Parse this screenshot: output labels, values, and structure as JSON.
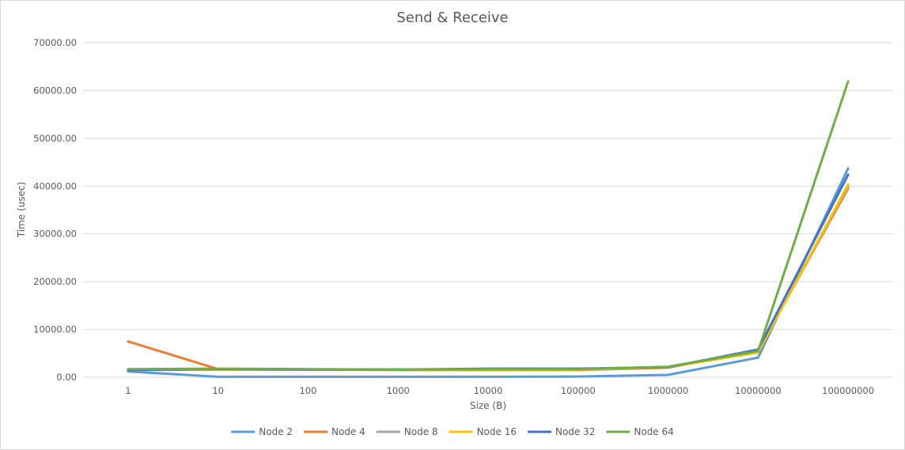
{
  "chart_data": {
    "type": "line",
    "title": "Send & Receive",
    "xlabel": "Size (B)",
    "ylabel": "Time (usec)",
    "ylim": [
      0,
      70000
    ],
    "yticks": [
      "0.00",
      "10000.00",
      "20000.00",
      "30000.00",
      "40000.00",
      "50000.00",
      "60000.00",
      "70000.00"
    ],
    "categories": [
      "1",
      "10",
      "100",
      "1000",
      "10000",
      "100000",
      "1000000",
      "10000000",
      "100000000"
    ],
    "grid": true,
    "legend_position": "bottom",
    "series": [
      {
        "name": "Node 2",
        "color": "#5b9bd5",
        "values": [
          1200,
          100,
          100,
          100,
          100,
          150,
          500,
          4100,
          43700
        ]
      },
      {
        "name": "Node 4",
        "color": "#ed7d31",
        "values": [
          7500,
          1700,
          1600,
          1500,
          1500,
          1500,
          2000,
          5600,
          39500
        ]
      },
      {
        "name": "Node 8",
        "color": "#a5a5a5",
        "values": [
          1500,
          1600,
          1600,
          1600,
          1600,
          1600,
          2100,
          5300,
          40000
        ]
      },
      {
        "name": "Node 16",
        "color": "#ffc000",
        "values": [
          1500,
          1600,
          1600,
          1600,
          1600,
          1600,
          2100,
          5200,
          40300
        ]
      },
      {
        "name": "Node 32",
        "color": "#4472c4",
        "values": [
          1500,
          1700,
          1600,
          1600,
          1800,
          1800,
          2100,
          5800,
          42400
        ]
      },
      {
        "name": "Node 64",
        "color": "#70ad47",
        "values": [
          1700,
          1800,
          1700,
          1600,
          1700,
          1700,
          2200,
          5500,
          61900
        ]
      }
    ]
  }
}
